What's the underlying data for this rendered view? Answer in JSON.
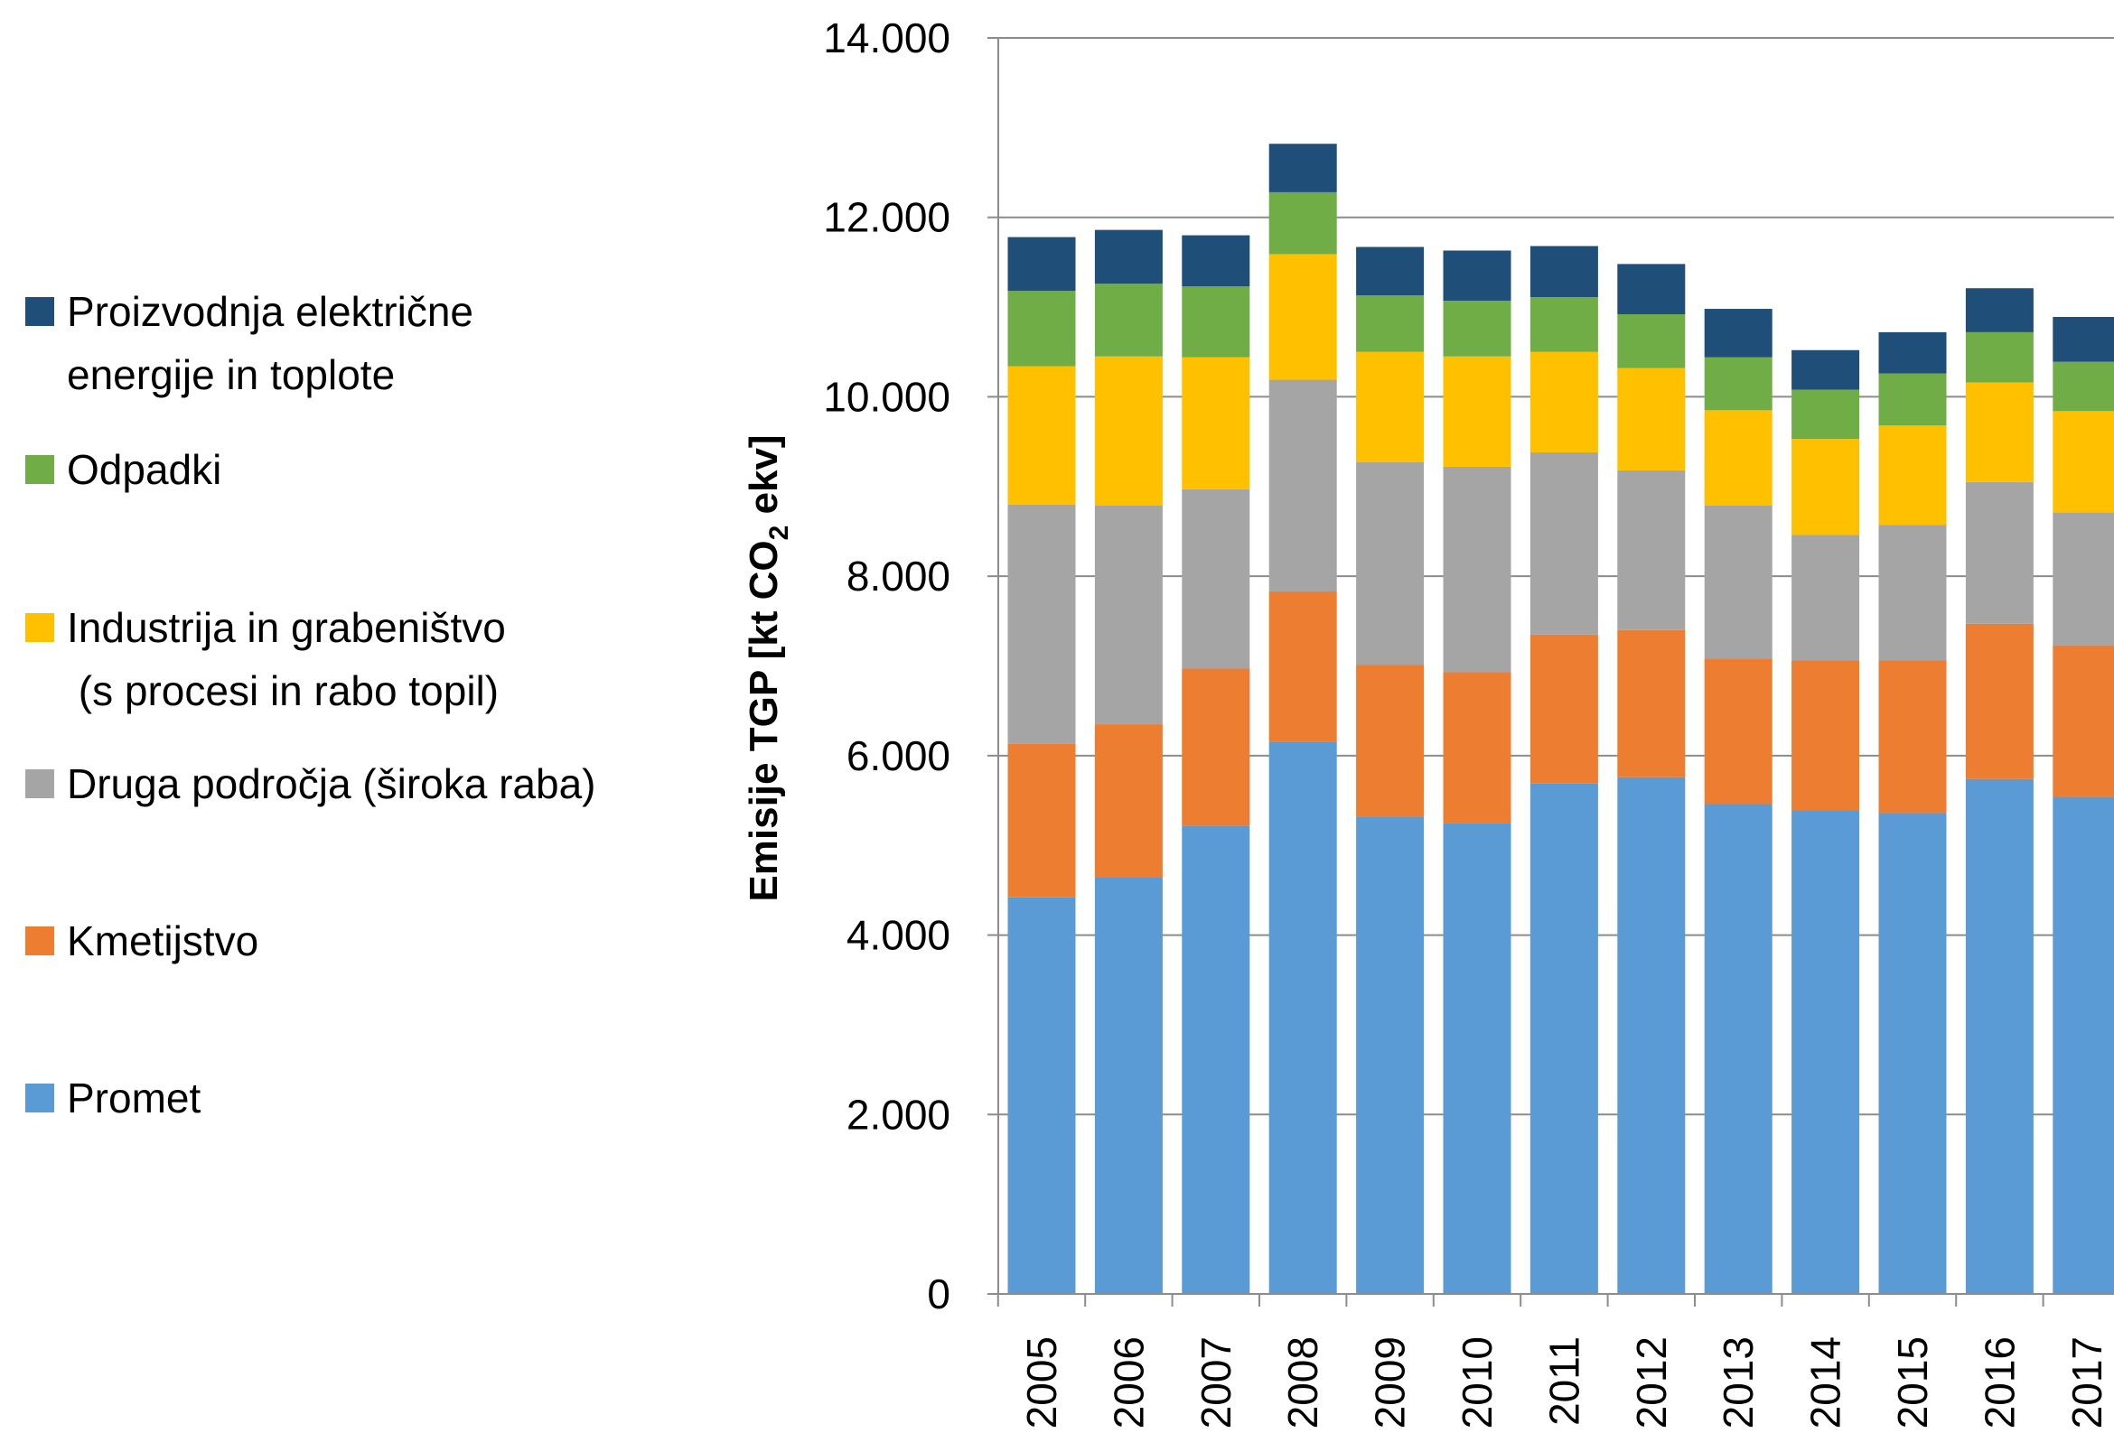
{
  "chart_data": {
    "type": "bar",
    "stacked": true,
    "categories": [
      "2005",
      "2006",
      "2007",
      "2008",
      "2009",
      "2010",
      "2011",
      "2012",
      "2013",
      "2014",
      "2015",
      "2016",
      "2017"
    ],
    "ylim": [
      0,
      14000
    ],
    "yticks": [
      0,
      2000,
      4000,
      6000,
      8000,
      10000,
      12000,
      14000
    ],
    "ytick_labels": [
      "0",
      "2.000",
      "4.000",
      "6.000",
      "8.000",
      "10.000",
      "12.000",
      "14.000"
    ],
    "ylabel": "Emisije TGP [kt CO",
    "ylabel_sub": "2",
    "ylabel_tail": " ekv]",
    "xlabel": "",
    "grid": true,
    "legend_position": "left",
    "series": [
      {
        "name": "Promet",
        "color": "#5b9bd5",
        "values": [
          4420,
          4640,
          5220,
          6150,
          5320,
          5250,
          5690,
          5760,
          5460,
          5390,
          5360,
          5740,
          5540
        ]
      },
      {
        "name": "Kmetijstvo",
        "color": "#ed7d31",
        "values": [
          1710,
          1710,
          1750,
          1680,
          1690,
          1680,
          1660,
          1640,
          1620,
          1670,
          1700,
          1730,
          1690
        ]
      },
      {
        "name": "Druga področja (široka raba)",
        "color": "#a5a5a5",
        "values": [
          2670,
          2440,
          2000,
          2360,
          2260,
          2290,
          2030,
          1780,
          1710,
          1400,
          1510,
          1580,
          1480
        ]
      },
      {
        "name": "Industrija in grabeništvo (s procesi in rabo topil)",
        "color": "#ffc000",
        "values": [
          1540,
          1660,
          1470,
          1400,
          1230,
          1230,
          1120,
          1140,
          1060,
          1070,
          1110,
          1110,
          1130
        ]
      },
      {
        "name": "Odpadki",
        "color": "#70ad47",
        "values": [
          840,
          810,
          790,
          690,
          630,
          620,
          610,
          600,
          590,
          550,
          580,
          560,
          550
        ]
      },
      {
        "name": "Proizvodnja električne energije in toplote",
        "color": "#1f4e79",
        "values": [
          600,
          600,
          570,
          540,
          540,
          560,
          570,
          560,
          540,
          440,
          460,
          490,
          500
        ]
      }
    ],
    "legend": [
      {
        "series": 5,
        "lines": [
          "Proizvodnja električne",
          "energije in toplote"
        ]
      },
      {
        "series": 4,
        "lines": [
          "Odpadki"
        ]
      },
      {
        "series": 3,
        "lines": [
          "Industrija in grabeništvo",
          " (s procesi in rabo topil)"
        ]
      },
      {
        "series": 2,
        "lines": [
          "Druga področja (široka raba)"
        ]
      },
      {
        "series": 1,
        "lines": [
          "Kmetijstvo"
        ]
      },
      {
        "series": 0,
        "lines": [
          "Promet"
        ]
      }
    ]
  }
}
